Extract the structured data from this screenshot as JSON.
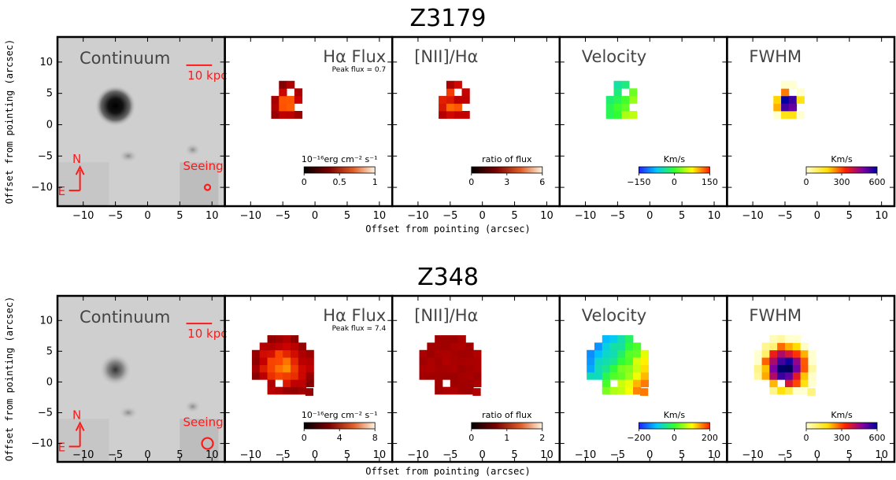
{
  "chart_data": [
    {
      "type": "heatmap",
      "title": "Z3179",
      "xlabel": "Offset from pointing (arcsec)",
      "ylabel": "Offset from pointing (arcsec)",
      "xlim": [
        -14,
        12
      ],
      "ylim": [
        -13,
        14
      ],
      "x_ticks": [
        "−10",
        "−5",
        "0",
        "5",
        "10"
      ],
      "y_ticks": [
        "10",
        "5",
        "0",
        "−5",
        "−10"
      ],
      "panels": [
        {
          "name": "Continuum",
          "scalebar": "10 kpc",
          "north": "N",
          "east": "E",
          "seeing": "Seeing",
          "source_center": [
            -5,
            3
          ],
          "seeing_radius": 0.5
        },
        {
          "name": "Hα Flux",
          "peak": "Peak flux = 0.7",
          "cbar_label": "10⁻¹⁶erg cm⁻² s⁻¹",
          "cbar_ticks": [
            "0",
            "0.5",
            "1"
          ],
          "cmap": "hot"
        },
        {
          "name": "[NII]/Hα",
          "cbar_label": "ratio of flux",
          "cbar_ticks": [
            "0",
            "3",
            "6"
          ],
          "cmap": "hot"
        },
        {
          "name": "Velocity",
          "cbar_label": "Km/s",
          "cbar_ticks": [
            "−150",
            "0",
            "150"
          ],
          "cmap": "rainbow"
        },
        {
          "name": "FWHM",
          "cbar_label": "Km/s",
          "cbar_ticks": [
            "0",
            "300",
            "600"
          ],
          "cmap": "fwhm"
        }
      ]
    },
    {
      "type": "heatmap",
      "title": "Z348",
      "xlabel": "Offset from pointing (arcsec)",
      "ylabel": "Offset from pointing (arcsec)",
      "xlim": [
        -14,
        12
      ],
      "ylim": [
        -13,
        14
      ],
      "x_ticks": [
        "−10",
        "−5",
        "0",
        "5",
        "10"
      ],
      "y_ticks": [
        "10",
        "5",
        "0",
        "−5",
        "−10"
      ],
      "panels": [
        {
          "name": "Continuum",
          "scalebar": "10 kpc",
          "north": "N",
          "east": "E",
          "seeing": "Seeing",
          "source_center": [
            -5,
            2
          ],
          "seeing_radius": 1
        },
        {
          "name": "Hα Flux",
          "peak": "Peak flux = 7.4",
          "cbar_label": "10⁻¹⁶erg cm⁻² s⁻¹",
          "cbar_ticks": [
            "0",
            "4",
            "8"
          ],
          "cmap": "hot"
        },
        {
          "name": "[NII]/Hα",
          "cbar_label": "ratio of flux",
          "cbar_ticks": [
            "0",
            "1",
            "2"
          ],
          "cmap": "hot"
        },
        {
          "name": "Velocity",
          "cbar_label": "Km/s",
          "cbar_ticks": [
            "−200",
            "0",
            "200"
          ],
          "cmap": "rainbow"
        },
        {
          "name": "FWHM",
          "cbar_label": "Km/s",
          "cbar_ticks": [
            "0",
            "300",
            "600"
          ],
          "cmap": "fwhm"
        }
      ]
    }
  ]
}
